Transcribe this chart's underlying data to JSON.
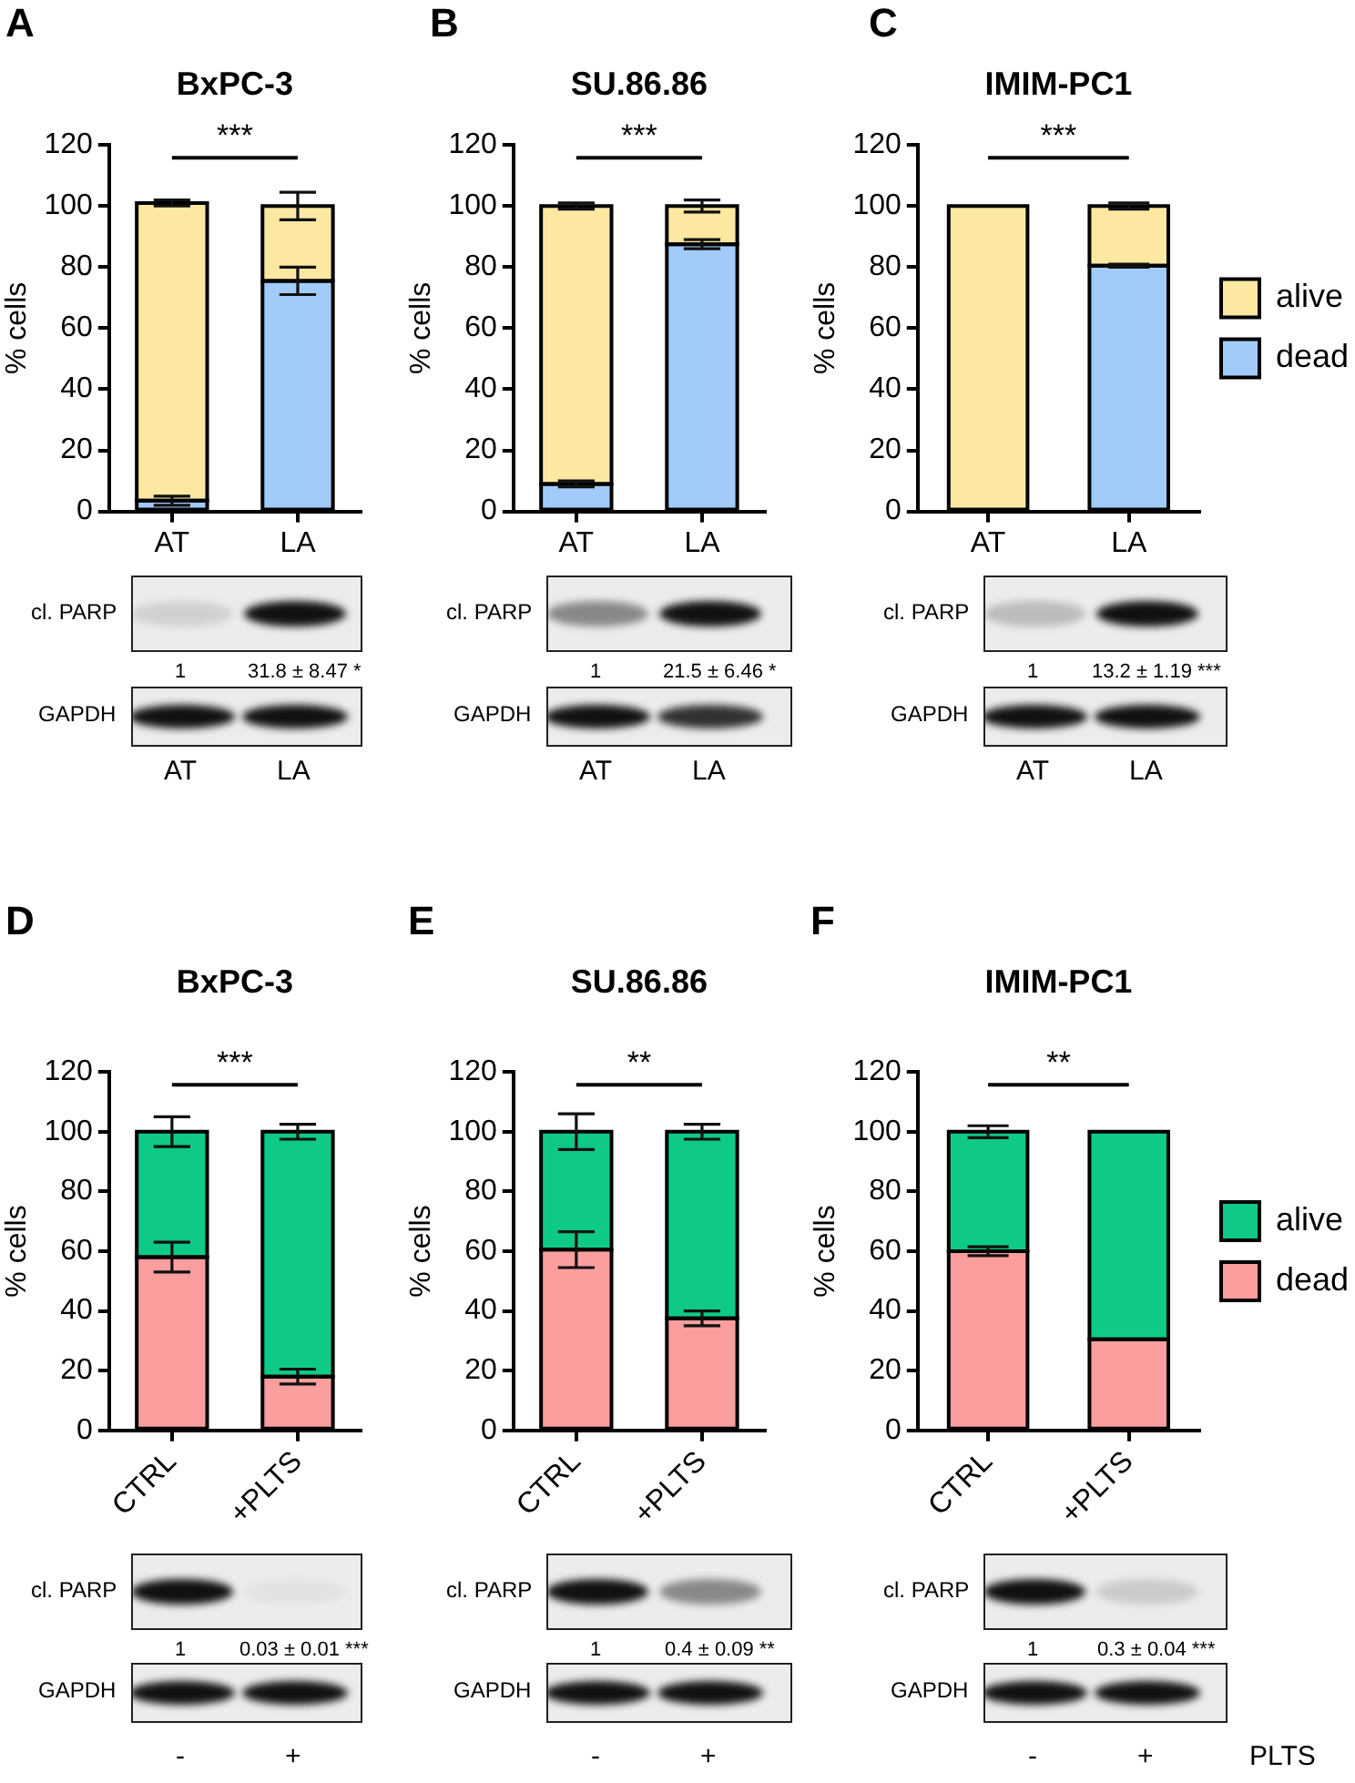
{
  "chart_data": [
    {
      "type": "bar",
      "title": "BxPC-3",
      "ylabel": "% cells",
      "categories": [
        "AT",
        "LA"
      ],
      "stacked": true,
      "series": [
        {
          "color": "#a1cbf9",
          "values": [
            3.5,
            75.5
          ],
          "errors": [
            1.5,
            4.5
          ]
        },
        {
          "color": "#fde8a2",
          "values": [
            97.5,
            24.5
          ],
          "errors": [
            1,
            4.5
          ]
        }
      ],
      "ylim": [
        0,
        120
      ],
      "yticks": [
        0,
        20,
        40,
        60,
        80,
        100,
        120
      ],
      "annotations": [
        "A",
        "***",
        "cl. PARP",
        "1",
        "31.8 ± 8.47 *",
        "GAPDH",
        "AT",
        "LA"
      ]
    },
    {
      "type": "bar",
      "title": "SU.86.86",
      "ylabel": "% cells",
      "categories": [
        "AT",
        "LA"
      ],
      "stacked": true,
      "series": [
        {
          "color": "#a1cbf9",
          "values": [
            9,
            87.5
          ],
          "errors": [
            1,
            1.5
          ]
        },
        {
          "color": "#fde8a2",
          "values": [
            91,
            12.5
          ],
          "errors": [
            1,
            2
          ]
        }
      ],
      "ylim": [
        0,
        120
      ],
      "yticks": [
        0,
        20,
        40,
        60,
        80,
        100,
        120
      ],
      "annotations": [
        "B",
        "***",
        "cl. PARP",
        "1",
        "21.5 ± 6.46 *",
        "GAPDH",
        "AT",
        "LA"
      ]
    },
    {
      "type": "bar",
      "title": "IMIM-PC1",
      "ylabel": "% cells",
      "categories": [
        "AT",
        "LA"
      ],
      "stacked": true,
      "series": [
        {
          "name": "dead",
          "color": "#a1cbf9",
          "values": [
            null,
            80.5
          ],
          "errors": [
            null,
            0.5
          ]
        },
        {
          "name": "alive",
          "color": "#fde8a2",
          "values": [
            100,
            19.5
          ],
          "errors": [
            null,
            1
          ]
        }
      ],
      "ylim": [
        0,
        120
      ],
      "yticks": [
        0,
        20,
        40,
        60,
        80,
        100,
        120
      ],
      "legend": "right",
      "annotations": [
        "C",
        "***",
        "cl. PARP",
        "1",
        "13.2 ± 1.19 ***",
        "GAPDH",
        "AT",
        "LA"
      ]
    },
    {
      "type": "bar",
      "title": "BxPC-3",
      "ylabel": "% cells",
      "categories": [
        "CTRL",
        "+PLTS"
      ],
      "stacked": true,
      "series": [
        {
          "color": "#fa9e9e",
          "values": [
            58,
            18
          ],
          "errors": [
            5,
            2.5
          ]
        },
        {
          "color": "#0fca86",
          "values": [
            42,
            82
          ],
          "errors": [
            5,
            2.5
          ]
        }
      ],
      "ylim": [
        0,
        120
      ],
      "yticks": [
        0,
        20,
        40,
        60,
        80,
        100,
        120
      ],
      "annotations": [
        "D",
        "***",
        "cl. PARP",
        "1",
        "0.03 ± 0.01 ***",
        "GAPDH",
        "-",
        "+"
      ]
    },
    {
      "type": "bar",
      "title": "SU.86.86",
      "ylabel": "% cells",
      "categories": [
        "CTRL",
        "+PLTS"
      ],
      "stacked": true,
      "series": [
        {
          "color": "#fa9e9e",
          "values": [
            60.5,
            37.5
          ],
          "errors": [
            6,
            2.5
          ]
        },
        {
          "color": "#0fca86",
          "values": [
            39.5,
            62.5
          ],
          "errors": [
            6,
            2.5
          ]
        }
      ],
      "ylim": [
        0,
        120
      ],
      "yticks": [
        0,
        20,
        40,
        60,
        80,
        100,
        120
      ],
      "annotations": [
        "E",
        "**",
        "cl. PARP",
        "1",
        "0.4 ± 0.09 **",
        "GAPDH",
        "-",
        "+"
      ]
    },
    {
      "type": "bar",
      "title": "IMIM-PC1",
      "ylabel": "% cells",
      "categories": [
        "CTRL",
        "+PLTS"
      ],
      "stacked": true,
      "series": [
        {
          "name": "dead",
          "color": "#fa9e9e",
          "values": [
            60,
            30.5
          ],
          "errors": [
            1.5,
            null
          ]
        },
        {
          "name": "alive",
          "color": "#0fca86",
          "values": [
            40,
            69.5
          ],
          "errors": [
            2,
            null
          ]
        }
      ],
      "ylim": [
        0,
        120
      ],
      "yticks": [
        0,
        20,
        40,
        60,
        80,
        100,
        120
      ],
      "legend": "right",
      "annotations": [
        "F",
        "**",
        "cl. PARP",
        "1",
        "0.3 ± 0.04 ***",
        "GAPDH",
        "-",
        "+",
        "PLTS"
      ]
    }
  ]
}
